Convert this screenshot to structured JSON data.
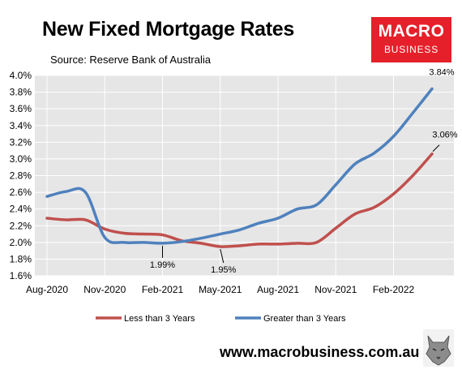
{
  "header": {
    "title": "New Fixed Mortgage Rates",
    "source": "Source: Reserve Bank of Australia"
  },
  "logo": {
    "top": "MACRO",
    "bottom": "BUSINESS",
    "color": "#e5202a"
  },
  "footer": {
    "url": "www.macrobusiness.com.au"
  },
  "chart_data": {
    "type": "line",
    "title": "New Fixed Mortgage Rates",
    "x": [
      "Aug-2020",
      "Sep-2020",
      "Oct-2020",
      "Nov-2020",
      "Dec-2020",
      "Jan-2021",
      "Feb-2021",
      "Mar-2021",
      "Apr-2021",
      "May-2021",
      "Jun-2021",
      "Jul-2021",
      "Aug-2021",
      "Sep-2021",
      "Oct-2021",
      "Nov-2021",
      "Dec-2021",
      "Jan-2022",
      "Feb-2022",
      "Mar-2022",
      "Apr-2022"
    ],
    "x_tick_labels": [
      "Aug-2020",
      "Nov-2020",
      "Feb-2021",
      "May-2021",
      "Aug-2021",
      "Nov-2021",
      "Feb-2022"
    ],
    "ylim": [
      1.6,
      4.0
    ],
    "y_tick_labels": [
      "1.6%",
      "1.8%",
      "2.0%",
      "2.2%",
      "2.4%",
      "2.6%",
      "2.8%",
      "3.0%",
      "3.2%",
      "3.4%",
      "3.6%",
      "3.8%",
      "4.0%"
    ],
    "grid": true,
    "legend_position": "bottom",
    "series": [
      {
        "name": "Less than 3 Years",
        "color": "#c0504d",
        "values": [
          2.29,
          2.27,
          2.27,
          2.16,
          2.11,
          2.1,
          2.09,
          2.02,
          1.99,
          1.95,
          1.96,
          1.98,
          1.98,
          1.99,
          2.0,
          2.17,
          2.34,
          2.42,
          2.58,
          2.8,
          3.06
        ]
      },
      {
        "name": "Greater than 3 Years",
        "color": "#4f81bd",
        "values": [
          2.55,
          2.61,
          2.6,
          2.06,
          2.0,
          2.0,
          1.99,
          2.01,
          2.05,
          2.1,
          2.15,
          2.23,
          2.29,
          2.4,
          2.45,
          2.69,
          2.94,
          3.07,
          3.27,
          3.55,
          3.84
        ]
      }
    ],
    "annotations": [
      {
        "text": "1.99%",
        "series": 1,
        "index": 6
      },
      {
        "text": "1.95%",
        "series": 0,
        "index": 9
      },
      {
        "text": "3.84%",
        "series": 1,
        "index": 20
      },
      {
        "text": "3.06%",
        "series": 0,
        "index": 20
      }
    ]
  }
}
